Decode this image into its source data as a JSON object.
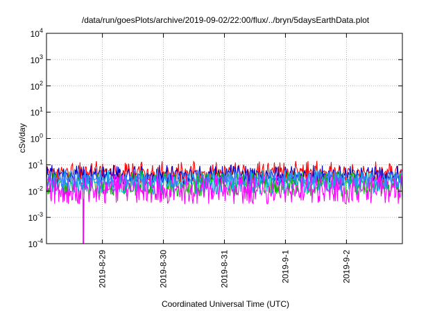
{
  "chart_data": {
    "type": "line",
    "title": "/data/run/goesPlots/archive/2019-09-02/22:00/flux/../bryn/5daysEarthData.plot",
    "xlabel": "Coordinated Universal Time (UTC)",
    "ylabel": "cSv/day",
    "yscale": "log",
    "ylim": [
      0.0001,
      10000
    ],
    "xlim": [
      "2019-08-28T02:00",
      "2019-09-02T22:00"
    ],
    "grid": true,
    "y_ticks": [
      {
        "value": 0.0001,
        "base": "10",
        "exp": "-4"
      },
      {
        "value": 0.001,
        "base": "10",
        "exp": "-3"
      },
      {
        "value": 0.01,
        "base": "10",
        "exp": "-2"
      },
      {
        "value": 0.1,
        "base": "10",
        "exp": "-1"
      },
      {
        "value": 1,
        "base": "10",
        "exp": "0"
      },
      {
        "value": 10,
        "base": "10",
        "exp": "1"
      },
      {
        "value": 100,
        "base": "10",
        "exp": "2"
      },
      {
        "value": 1000,
        "base": "10",
        "exp": "3"
      },
      {
        "value": 10000,
        "base": "10",
        "exp": "4"
      }
    ],
    "x_ticks": [
      {
        "value": "2019-08-29",
        "label": "2019-8-29"
      },
      {
        "value": "2019-08-30",
        "label": "2019-8-30"
      },
      {
        "value": "2019-08-31",
        "label": "2019-8-31"
      },
      {
        "value": "2019-09-01",
        "label": "2019-9-1"
      },
      {
        "value": "2019-09-02",
        "label": "2019-9-2"
      }
    ],
    "series": [
      {
        "color": "#ff0000",
        "typical_range": [
          0.03,
          0.1
        ]
      },
      {
        "color": "#0000cc",
        "typical_range": [
          0.025,
          0.07
        ]
      },
      {
        "color": "#00c000",
        "typical_range": [
          0.01,
          0.04
        ]
      },
      {
        "color": "#00b0e0",
        "typical_range": [
          0.012,
          0.045
        ]
      },
      {
        "color": "#4080ff",
        "typical_range": [
          0.02,
          0.05
        ]
      },
      {
        "color": "#ff00ff",
        "typical_range": [
          0.005,
          0.03
        ],
        "dip": {
          "x": "2019-08-28T16:30",
          "y": 0.0001
        }
      }
    ]
  }
}
